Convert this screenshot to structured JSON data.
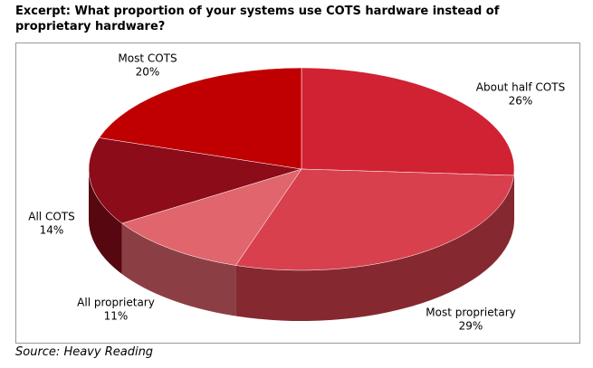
{
  "chart_data": {
    "type": "pie",
    "title": "Excerpt: What proportion of your systems use COTS hardware instead of proprietary hardware?",
    "categories": [
      "About half COTS",
      "Most proprietary",
      "All proprietary",
      "All COTS",
      "Most COTS"
    ],
    "values": [
      26,
      29,
      11,
      14,
      20
    ],
    "value_labels": [
      "26%",
      "29%",
      "11%",
      "14%",
      "20%"
    ],
    "colors": [
      "#d02232",
      "#d8404e",
      "#e0656d",
      "#8c0c1a",
      "#c00000"
    ],
    "source": "Source: Heavy Reading"
  }
}
